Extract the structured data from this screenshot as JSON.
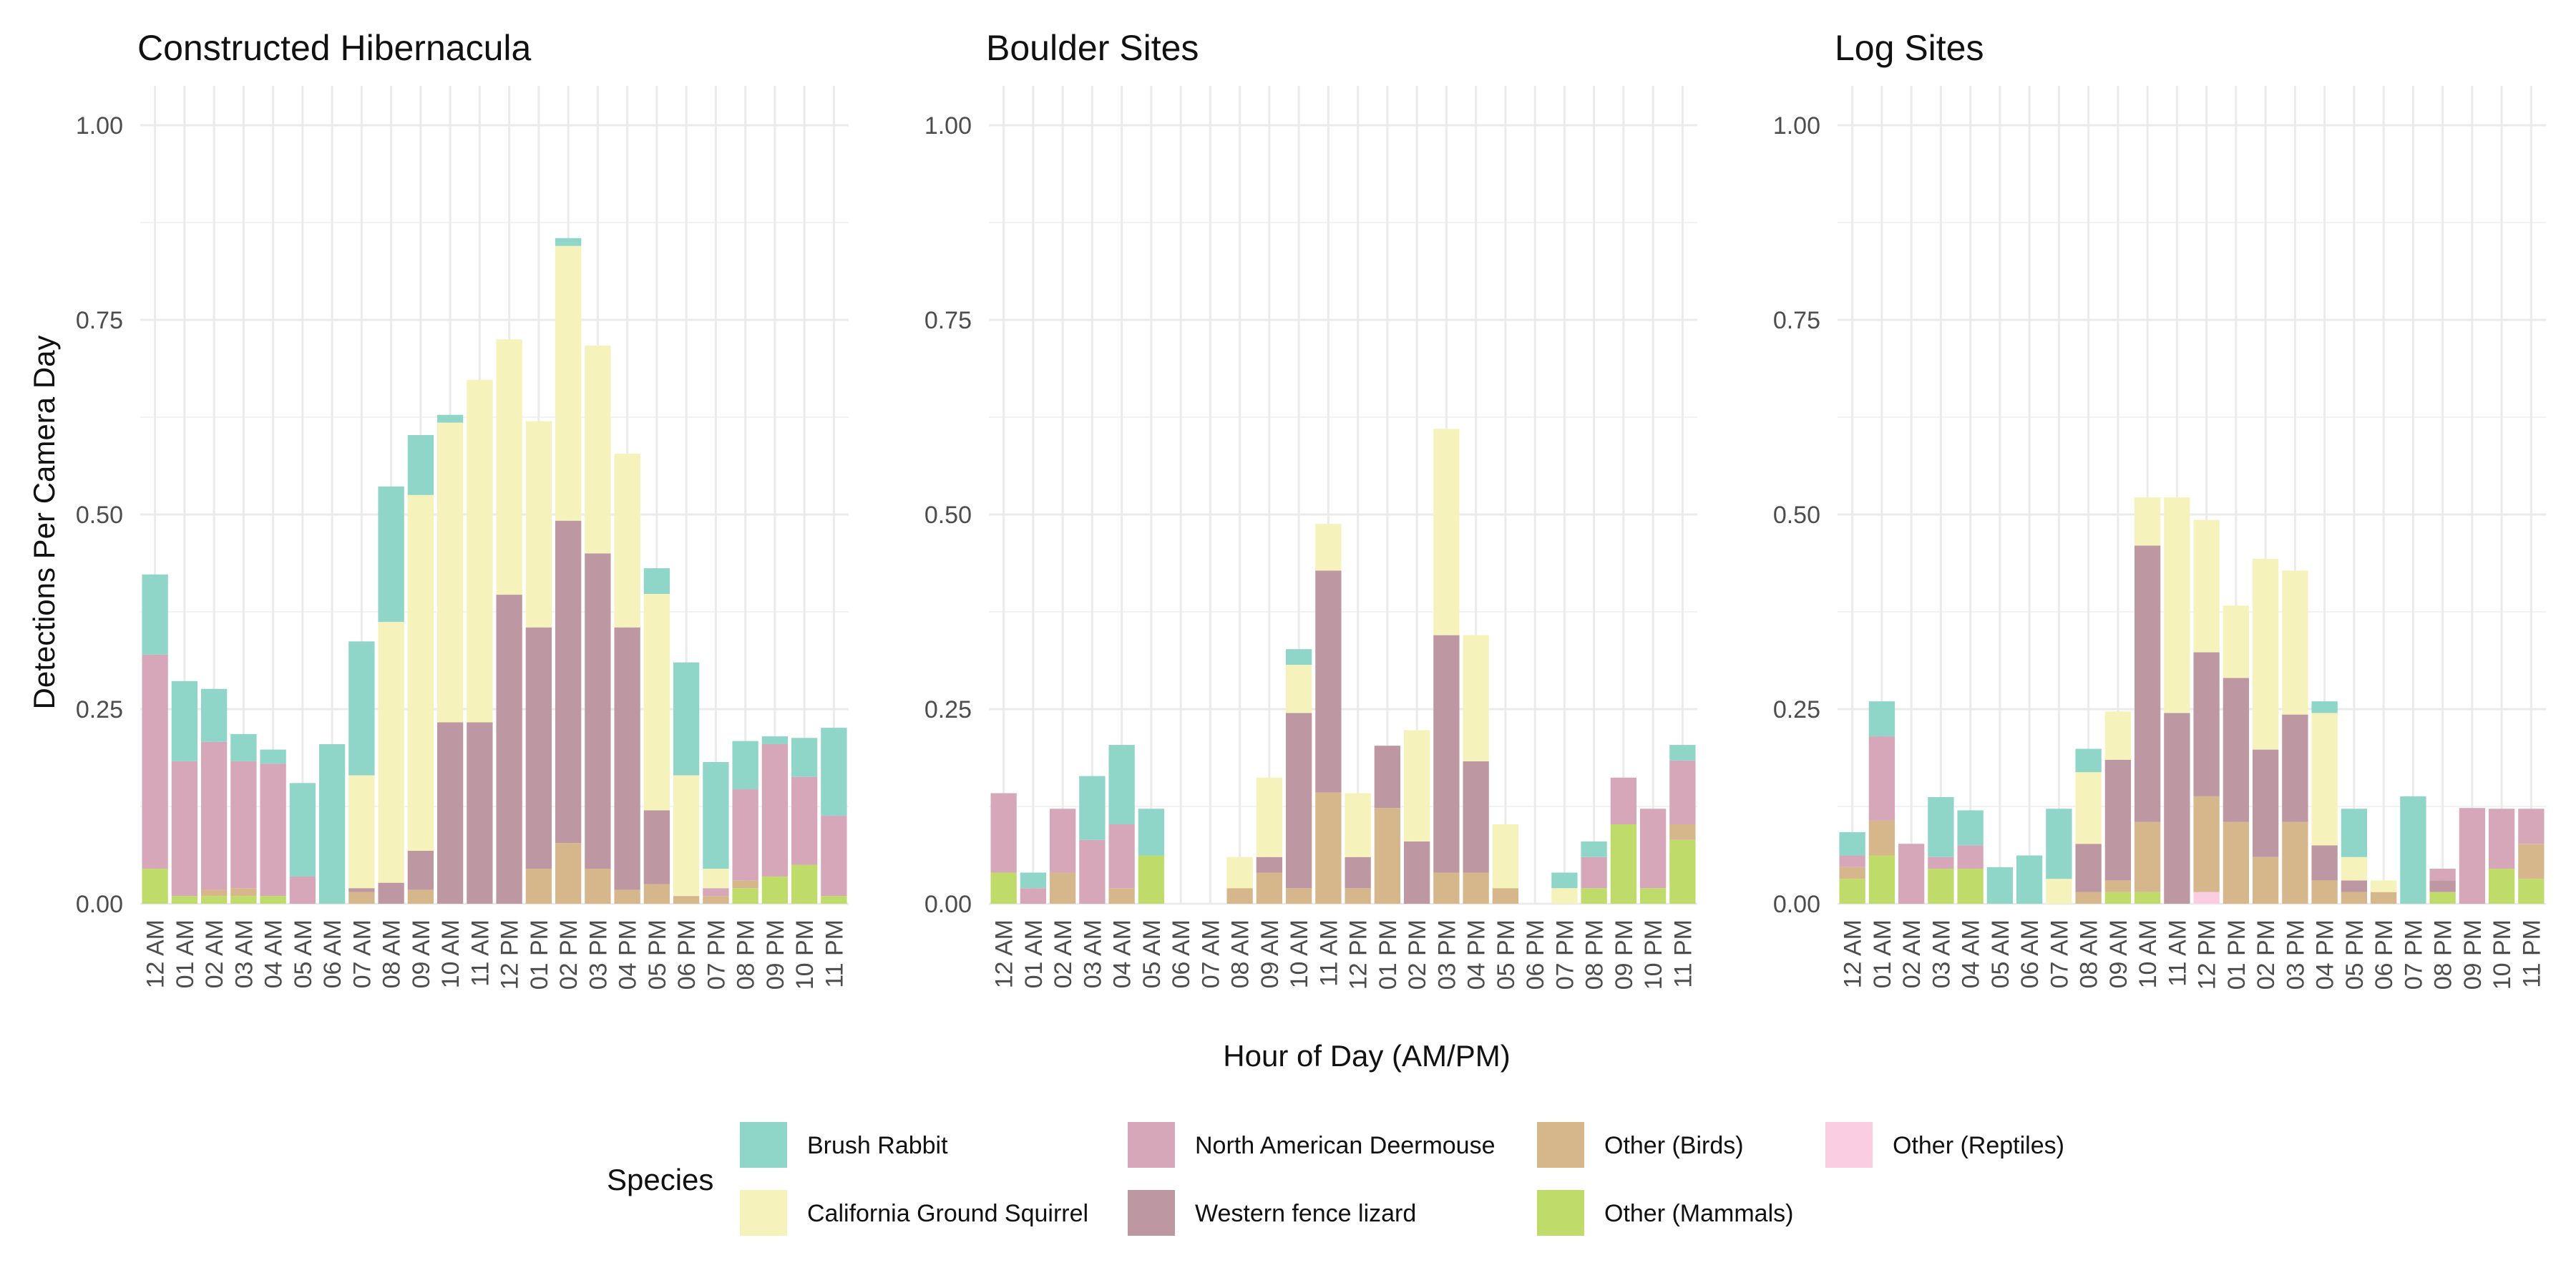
{
  "chart_data": {
    "type": "bar",
    "stacked": true,
    "ylabel": "Detections Per Camera Day",
    "xlabel": "Hour of Day (AM/PM)",
    "ylim": [
      0,
      1.05
    ],
    "yticks": [
      "0.00",
      "0.25",
      "0.50",
      "0.75",
      "1.00"
    ],
    "categories": [
      "12 AM",
      "01 AM",
      "02 AM",
      "03 AM",
      "04 AM",
      "05 AM",
      "06 AM",
      "07 AM",
      "08 AM",
      "09 AM",
      "10 AM",
      "11 AM",
      "12 PM",
      "01 PM",
      "02 PM",
      "03 PM",
      "04 PM",
      "05 PM",
      "06 PM",
      "07 PM",
      "08 PM",
      "09 PM",
      "10 PM",
      "11 PM"
    ],
    "legend": {
      "title": "Species",
      "position": "bottom",
      "entries": [
        {
          "key": "brush_rabbit",
          "label": "Brush Rabbit",
          "color": "#8fd5c8"
        },
        {
          "key": "ca_ground_squirrel",
          "label": "California Ground Squirrel",
          "color": "#f5f3bb"
        },
        {
          "key": "deermouse",
          "label": "North American Deermouse",
          "color": "#d6a7b8"
        },
        {
          "key": "fence_lizard",
          "label": "Western fence lizard",
          "color": "#bd98a2"
        },
        {
          "key": "birds",
          "label": "Other (Birds)",
          "color": "#d6b68b"
        },
        {
          "key": "mammals",
          "label": "Other (Mammals)",
          "color": "#bfdb6a"
        },
        {
          "key": "reptiles",
          "label": "Other (Reptiles)",
          "color": "#fbcde2"
        }
      ]
    },
    "stack_order_bottom_to_top": [
      "reptiles",
      "mammals",
      "birds",
      "fence_lizard",
      "deermouse",
      "ca_ground_squirrel",
      "brush_rabbit"
    ],
    "panels": [
      {
        "title": "Constructed Hibernacula",
        "series": {
          "reptiles": [
            0,
            0,
            0,
            0,
            0,
            0,
            0,
            0,
            0,
            0,
            0,
            0,
            0,
            0,
            0,
            0,
            0,
            0,
            0,
            0,
            0,
            0,
            0,
            0
          ],
          "mammals": [
            0.045,
            0.01,
            0.01,
            0.01,
            0.01,
            0,
            0,
            0,
            0,
            0,
            0,
            0,
            0,
            0,
            0,
            0,
            0,
            0,
            0,
            0,
            0.02,
            0.035,
            0.05,
            0.01
          ],
          "birds": [
            0,
            0,
            0.008,
            0.01,
            0,
            0,
            0,
            0.015,
            0,
            0.018,
            0,
            0,
            0,
            0.045,
            0.078,
            0.045,
            0.018,
            0.025,
            0.01,
            0.01,
            0.01,
            0,
            0,
            0
          ],
          "fence_lizard": [
            0,
            0,
            0,
            0,
            0,
            0,
            0,
            0.005,
            0.027,
            0.05,
            0.233,
            0.233,
            0.397,
            0.31,
            0.414,
            0.405,
            0.337,
            0.095,
            0,
            0,
            0,
            0,
            0,
            0
          ],
          "deermouse": [
            0.275,
            0.173,
            0.19,
            0.163,
            0.17,
            0.035,
            0,
            0,
            0,
            0,
            0,
            0,
            0,
            0,
            0,
            0,
            0,
            0,
            0,
            0.01,
            0.117,
            0.17,
            0.113,
            0.103
          ],
          "ca_ground_squirrel": [
            0,
            0,
            0,
            0,
            0,
            0,
            0,
            0.145,
            0.335,
            0.457,
            0.385,
            0.44,
            0.328,
            0.265,
            0.353,
            0.267,
            0.223,
            0.278,
            0.155,
            0.025,
            0,
            0,
            0,
            0
          ],
          "brush_rabbit": [
            0.103,
            0.103,
            0.068,
            0.035,
            0.018,
            0.12,
            0.205,
            0.172,
            0.174,
            0.077,
            0.01,
            0,
            0,
            0,
            0.01,
            0,
            0,
            0.033,
            0.145,
            0.137,
            0.062,
            0.01,
            0.05,
            0.113
          ]
        }
      },
      {
        "title": "Boulder Sites",
        "series": {
          "reptiles": [
            0,
            0,
            0,
            0,
            0,
            0,
            0,
            0,
            0,
            0,
            0,
            0,
            0,
            0,
            0,
            0,
            0,
            0,
            0,
            0,
            0,
            0,
            0,
            0
          ],
          "mammals": [
            0.04,
            0,
            0,
            0,
            0,
            0.062,
            0,
            0,
            0,
            0,
            0,
            0,
            0,
            0,
            0,
            0,
            0,
            0,
            0,
            0,
            0.02,
            0.102,
            0.02,
            0.082
          ],
          "birds": [
            0,
            0,
            0.04,
            0,
            0.02,
            0,
            0,
            0,
            0.02,
            0.04,
            0.02,
            0.143,
            0.02,
            0.123,
            0,
            0.04,
            0.04,
            0.02,
            0,
            0,
            0,
            0,
            0,
            0.02
          ],
          "fence_lizard": [
            0,
            0,
            0,
            0,
            0,
            0,
            0,
            0,
            0,
            0.02,
            0.225,
            0.285,
            0.04,
            0.08,
            0.08,
            0.305,
            0.143,
            0,
            0,
            0,
            0,
            0,
            0,
            0
          ],
          "deermouse": [
            0.102,
            0.02,
            0.082,
            0.082,
            0.082,
            0,
            0,
            0,
            0,
            0,
            0,
            0,
            0,
            0,
            0,
            0,
            0,
            0,
            0,
            0,
            0.04,
            0.06,
            0.102,
            0.082
          ],
          "ca_ground_squirrel": [
            0,
            0,
            0,
            0,
            0,
            0,
            0,
            0,
            0.04,
            0.102,
            0.062,
            0.06,
            0.082,
            0,
            0.143,
            0.265,
            0.162,
            0.082,
            0,
            0.02,
            0,
            0,
            0,
            0
          ],
          "brush_rabbit": [
            0,
            0.02,
            0,
            0.082,
            0.102,
            0.06,
            0,
            0,
            0,
            0,
            0.02,
            0,
            0,
            0,
            0,
            0,
            0,
            0,
            0,
            0.02,
            0.02,
            0,
            0,
            0.02
          ]
        }
      },
      {
        "title": "Log Sites",
        "series": {
          "reptiles": [
            0,
            0,
            0,
            0,
            0,
            0,
            0,
            0,
            0,
            0,
            0,
            0,
            0.015,
            0,
            0,
            0,
            0,
            0,
            0,
            0,
            0,
            0,
            0,
            0
          ],
          "mammals": [
            0.032,
            0.062,
            0,
            0.045,
            0.045,
            0,
            0,
            0,
            0,
            0.015,
            0.015,
            0,
            0,
            0,
            0,
            0,
            0,
            0,
            0,
            0,
            0.015,
            0,
            0.045,
            0.032
          ],
          "birds": [
            0.015,
            0.045,
            0,
            0,
            0,
            0,
            0,
            0,
            0.015,
            0.015,
            0.09,
            0,
            0.123,
            0.105,
            0.06,
            0.105,
            0.03,
            0.015,
            0.015,
            0,
            0,
            0,
            0,
            0.045
          ],
          "fence_lizard": [
            0,
            0,
            0,
            0,
            0,
            0,
            0,
            0,
            0.062,
            0.155,
            0.355,
            0.245,
            0.185,
            0.185,
            0.138,
            0.138,
            0.045,
            0.015,
            0,
            0,
            0.015,
            0,
            0,
            0
          ],
          "deermouse": [
            0.015,
            0.108,
            0.077,
            0.015,
            0.03,
            0,
            0,
            0,
            0,
            0,
            0,
            0,
            0,
            0,
            0,
            0,
            0,
            0,
            0,
            0,
            0.015,
            0.123,
            0.077,
            0.045
          ],
          "ca_ground_squirrel": [
            0,
            0,
            0,
            0,
            0,
            0,
            0,
            0.032,
            0.092,
            0.062,
            0.062,
            0.277,
            0.17,
            0.093,
            0.245,
            0.185,
            0.17,
            0.03,
            0.015,
            0,
            0,
            0,
            0,
            0
          ],
          "brush_rabbit": [
            0.03,
            0.045,
            0,
            0.077,
            0.045,
            0.047,
            0.062,
            0.09,
            0.03,
            0,
            0,
            0,
            0,
            0,
            0,
            0,
            0.015,
            0.062,
            0,
            0.138,
            0,
            0,
            0,
            0
          ]
        }
      }
    ]
  }
}
